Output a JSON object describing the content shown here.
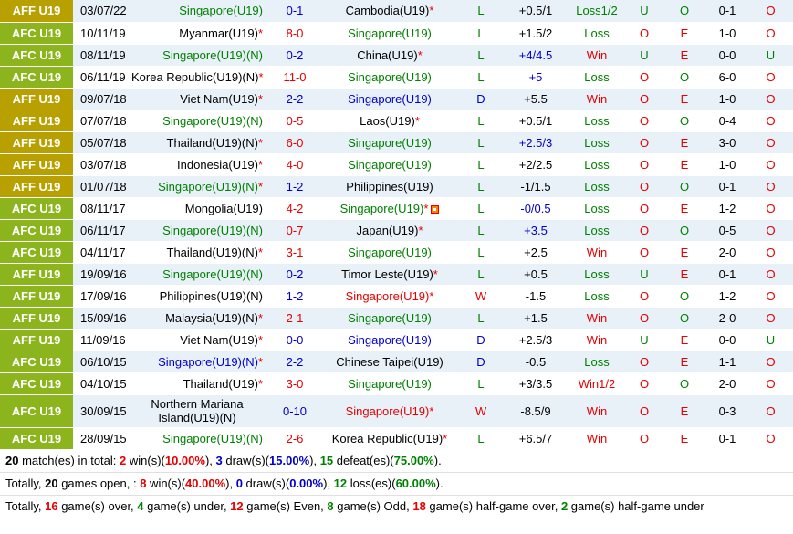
{
  "colors": {
    "aff": "#b8a000",
    "afc": "#8cb41c"
  },
  "rows": [
    {
      "league": "AFF U19",
      "lc": "aff",
      "date": "03/07/22",
      "home": "Singapore(U19)",
      "hc": "green",
      "hs": "",
      "score": "0-1",
      "sc": "blue",
      "away": "Cambodia(U19)",
      "ac": "black",
      "as": "*",
      "res": "L",
      "rc": "green",
      "hcap": "+0.5/1",
      "hcc": "black",
      "ou": "Loss1/2",
      "ouc": "green",
      "o1": "U",
      "o1c": "green",
      "o2": "O",
      "o2c": "green",
      "ht": "0-1",
      "o3": "O",
      "o3c": "red"
    },
    {
      "league": "AFC U19",
      "lc": "afc",
      "date": "10/11/19",
      "home": "Myanmar(U19)",
      "hc": "black",
      "hs": "*",
      "score": "8-0",
      "sc": "red",
      "away": "Singapore(U19)",
      "ac": "green",
      "as": "",
      "res": "L",
      "rc": "green",
      "hcap": "+1.5/2",
      "hcc": "black",
      "ou": "Loss",
      "ouc": "green",
      "o1": "O",
      "o1c": "red",
      "o2": "E",
      "o2c": "red",
      "ht": "1-0",
      "o3": "O",
      "o3c": "red"
    },
    {
      "league": "AFC U19",
      "lc": "afc",
      "date": "08/11/19",
      "home": "Singapore(U19)(N)",
      "hc": "green",
      "hs": "",
      "score": "0-2",
      "sc": "blue",
      "away": "China(U19)",
      "ac": "black",
      "as": "*",
      "res": "L",
      "rc": "green",
      "hcap": "+4/4.5",
      "hcc": "blue",
      "ou": "Win",
      "ouc": "red",
      "o1": "U",
      "o1c": "green",
      "o2": "E",
      "o2c": "red",
      "ht": "0-0",
      "o3": "U",
      "o3c": "green"
    },
    {
      "league": "AFC U19",
      "lc": "afc",
      "date": "06/11/19",
      "home": "Korea Republic(U19)(N)",
      "hc": "black",
      "hs": "*",
      "score": "11-0",
      "sc": "red",
      "away": "Singapore(U19)",
      "ac": "green",
      "as": "",
      "res": "L",
      "rc": "green",
      "hcap": "+5",
      "hcc": "blue",
      "ou": "Loss",
      "ouc": "green",
      "o1": "O",
      "o1c": "red",
      "o2": "O",
      "o2c": "green",
      "ht": "6-0",
      "o3": "O",
      "o3c": "red"
    },
    {
      "league": "AFF U19",
      "lc": "aff",
      "date": "09/07/18",
      "home": "Viet Nam(U19)",
      "hc": "black",
      "hs": "*",
      "score": "2-2",
      "sc": "blue",
      "away": "Singapore(U19)",
      "ac": "blue",
      "as": "",
      "res": "D",
      "rc": "blue",
      "hcap": "+5.5",
      "hcc": "black",
      "ou": "Win",
      "ouc": "red",
      "o1": "O",
      "o1c": "red",
      "o2": "E",
      "o2c": "red",
      "ht": "1-0",
      "o3": "O",
      "o3c": "red"
    },
    {
      "league": "AFF U19",
      "lc": "aff",
      "date": "07/07/18",
      "home": "Singapore(U19)(N)",
      "hc": "green",
      "hs": "",
      "score": "0-5",
      "sc": "red",
      "away": "Laos(U19)",
      "ac": "black",
      "as": "*",
      "res": "L",
      "rc": "green",
      "hcap": "+0.5/1",
      "hcc": "black",
      "ou": "Loss",
      "ouc": "green",
      "o1": "O",
      "o1c": "red",
      "o2": "O",
      "o2c": "green",
      "ht": "0-4",
      "o3": "O",
      "o3c": "red"
    },
    {
      "league": "AFF U19",
      "lc": "aff",
      "date": "05/07/18",
      "home": "Thailand(U19)(N)",
      "hc": "black",
      "hs": "*",
      "score": "6-0",
      "sc": "red",
      "away": "Singapore(U19)",
      "ac": "green",
      "as": "",
      "res": "L",
      "rc": "green",
      "hcap": "+2.5/3",
      "hcc": "blue",
      "ou": "Loss",
      "ouc": "green",
      "o1": "O",
      "o1c": "red",
      "o2": "E",
      "o2c": "red",
      "ht": "3-0",
      "o3": "O",
      "o3c": "red"
    },
    {
      "league": "AFF U19",
      "lc": "aff",
      "date": "03/07/18",
      "home": "Indonesia(U19)",
      "hc": "black",
      "hs": "*",
      "score": "4-0",
      "sc": "red",
      "away": "Singapore(U19)",
      "ac": "green",
      "as": "",
      "res": "L",
      "rc": "green",
      "hcap": "+2/2.5",
      "hcc": "black",
      "ou": "Loss",
      "ouc": "green",
      "o1": "O",
      "o1c": "red",
      "o2": "E",
      "o2c": "red",
      "ht": "1-0",
      "o3": "O",
      "o3c": "red"
    },
    {
      "league": "AFF U19",
      "lc": "aff",
      "date": "01/07/18",
      "home": "Singapore(U19)(N)",
      "hc": "green",
      "hs": "*",
      "score": "1-2",
      "sc": "blue",
      "away": "Philippines(U19)",
      "ac": "black",
      "as": "",
      "res": "L",
      "rc": "green",
      "hcap": "-1/1.5",
      "hcc": "black",
      "ou": "Loss",
      "ouc": "green",
      "o1": "O",
      "o1c": "red",
      "o2": "O",
      "o2c": "green",
      "ht": "0-1",
      "o3": "O",
      "o3c": "red"
    },
    {
      "league": "AFC U19",
      "lc": "afc",
      "date": "08/11/17",
      "home": "Mongolia(U19)",
      "hc": "black",
      "hs": "",
      "score": "4-2",
      "sc": "red",
      "away": "Singapore(U19)",
      "ac": "green",
      "as": "*",
      "flag": true,
      "res": "L",
      "rc": "green",
      "hcap": "-0/0.5",
      "hcc": "blue",
      "ou": "Loss",
      "ouc": "green",
      "o1": "O",
      "o1c": "red",
      "o2": "E",
      "o2c": "red",
      "ht": "1-2",
      "o3": "O",
      "o3c": "red"
    },
    {
      "league": "AFC U19",
      "lc": "afc",
      "date": "06/11/17",
      "home": "Singapore(U19)(N)",
      "hc": "green",
      "hs": "",
      "score": "0-7",
      "sc": "red",
      "away": "Japan(U19)",
      "ac": "black",
      "as": "*",
      "res": "L",
      "rc": "green",
      "hcap": "+3.5",
      "hcc": "blue",
      "ou": "Loss",
      "ouc": "green",
      "o1": "O",
      "o1c": "red",
      "o2": "O",
      "o2c": "green",
      "ht": "0-5",
      "o3": "O",
      "o3c": "red"
    },
    {
      "league": "AFC U19",
      "lc": "afc",
      "date": "04/11/17",
      "home": "Thailand(U19)(N)",
      "hc": "black",
      "hs": "*",
      "score": "3-1",
      "sc": "red",
      "away": "Singapore(U19)",
      "ac": "green",
      "as": "",
      "res": "L",
      "rc": "green",
      "hcap": "+2.5",
      "hcc": "black",
      "ou": "Win",
      "ouc": "red",
      "o1": "O",
      "o1c": "red",
      "o2": "E",
      "o2c": "red",
      "ht": "2-0",
      "o3": "O",
      "o3c": "red"
    },
    {
      "league": "AFF U19",
      "lc": "afc",
      "date": "19/09/16",
      "home": "Singapore(U19)(N)",
      "hc": "green",
      "hs": "",
      "score": "0-2",
      "sc": "blue",
      "away": "Timor Leste(U19)",
      "ac": "black",
      "as": "*",
      "res": "L",
      "rc": "green",
      "hcap": "+0.5",
      "hcc": "black",
      "ou": "Loss",
      "ouc": "green",
      "o1": "U",
      "o1c": "green",
      "o2": "E",
      "o2c": "red",
      "ht": "0-1",
      "o3": "O",
      "o3c": "red"
    },
    {
      "league": "AFF U19",
      "lc": "afc",
      "date": "17/09/16",
      "home": "Philippines(U19)(N)",
      "hc": "black",
      "hs": "",
      "score": "1-2",
      "sc": "blue",
      "away": "Singapore(U19)",
      "ac": "red",
      "as": "*",
      "res": "W",
      "rc": "red",
      "hcap": "-1.5",
      "hcc": "black",
      "ou": "Loss",
      "ouc": "green",
      "o1": "O",
      "o1c": "red",
      "o2": "O",
      "o2c": "green",
      "ht": "1-2",
      "o3": "O",
      "o3c": "red"
    },
    {
      "league": "AFF U19",
      "lc": "afc",
      "date": "15/09/16",
      "home": "Malaysia(U19)(N)",
      "hc": "black",
      "hs": "*",
      "score": "2-1",
      "sc": "red",
      "away": "Singapore(U19)",
      "ac": "green",
      "as": "",
      "res": "L",
      "rc": "green",
      "hcap": "+1.5",
      "hcc": "black",
      "ou": "Win",
      "ouc": "red",
      "o1": "O",
      "o1c": "red",
      "o2": "O",
      "o2c": "green",
      "ht": "2-0",
      "o3": "O",
      "o3c": "red"
    },
    {
      "league": "AFF U19",
      "lc": "afc",
      "date": "11/09/16",
      "home": "Viet Nam(U19)",
      "hc": "black",
      "hs": "*",
      "score": "0-0",
      "sc": "blue",
      "away": "Singapore(U19)",
      "ac": "blue",
      "as": "",
      "res": "D",
      "rc": "blue",
      "hcap": "+2.5/3",
      "hcc": "black",
      "ou": "Win",
      "ouc": "red",
      "o1": "U",
      "o1c": "green",
      "o2": "E",
      "o2c": "red",
      "ht": "0-0",
      "o3": "U",
      "o3c": "green"
    },
    {
      "league": "AFC U19",
      "lc": "afc",
      "date": "06/10/15",
      "home": "Singapore(U19)(N)",
      "hc": "blue",
      "hs": "*",
      "score": "2-2",
      "sc": "blue",
      "away": "Chinese Taipei(U19)",
      "ac": "black",
      "as": "",
      "res": "D",
      "rc": "blue",
      "hcap": "-0.5",
      "hcc": "black",
      "ou": "Loss",
      "ouc": "green",
      "o1": "O",
      "o1c": "red",
      "o2": "E",
      "o2c": "red",
      "ht": "1-1",
      "o3": "O",
      "o3c": "red"
    },
    {
      "league": "AFC U19",
      "lc": "afc",
      "date": "04/10/15",
      "home": "Thailand(U19)",
      "hc": "black",
      "hs": "*",
      "score": "3-0",
      "sc": "red",
      "away": "Singapore(U19)",
      "ac": "green",
      "as": "",
      "res": "L",
      "rc": "green",
      "hcap": "+3/3.5",
      "hcc": "black",
      "ou": "Win1/2",
      "ouc": "red",
      "o1": "O",
      "o1c": "red",
      "o2": "O",
      "o2c": "green",
      "ht": "2-0",
      "o3": "O",
      "o3c": "red"
    },
    {
      "league": "AFC U19",
      "lc": "afc",
      "date": "30/09/15",
      "home": "Northern Mariana Island(U19)(N)",
      "hc": "black",
      "hs": "",
      "tall": true,
      "score": "0-10",
      "sc": "blue",
      "away": "Singapore(U19)",
      "ac": "red",
      "as": "*",
      "res": "W",
      "rc": "red",
      "hcap": "-8.5/9",
      "hcc": "black",
      "ou": "Win",
      "ouc": "red",
      "o1": "O",
      "o1c": "red",
      "o2": "E",
      "o2c": "red",
      "ht": "0-3",
      "o3": "O",
      "o3c": "red"
    },
    {
      "league": "AFC U19",
      "lc": "afc",
      "date": "28/09/15",
      "home": "Singapore(U19)(N)",
      "hc": "green",
      "hs": "",
      "score": "2-6",
      "sc": "red",
      "away": "Korea Republic(U19)",
      "ac": "black",
      "as": "*",
      "res": "L",
      "rc": "green",
      "hcap": "+6.5/7",
      "hcc": "black",
      "ou": "Win",
      "ouc": "red",
      "o1": "O",
      "o1c": "red",
      "o2": "E",
      "o2c": "red",
      "ht": "0-1",
      "o3": "O",
      "o3c": "red"
    }
  ],
  "summary": {
    "line1": {
      "count": "20",
      "t1": " match(es) in total: ",
      "wins": "2",
      "t2": " win(s)(",
      "winpct": "10.00%",
      "t3": "), ",
      "draws": "3",
      "t4": " draw(s)(",
      "drawpct": "15.00%",
      "t5": "), ",
      "defeats": "15",
      "t6": " defeat(es)(",
      "defeatpct": "75.00%",
      "t7": ")."
    },
    "line2": {
      "t0": "Totally, ",
      "count": "20",
      "t1": " games open, : ",
      "wins": "8",
      "t2": " win(s)(",
      "winpct": "40.00%",
      "t3": "), ",
      "draws": "0",
      "t4": " draw(s)(",
      "drawpct": "0.00%",
      "t5": "), ",
      "losses": "12",
      "t6": " loss(es)(",
      "losspct": "60.00%",
      "t7": ")."
    },
    "line3": {
      "t0": "Totally, ",
      "over": "16",
      "t1": " game(s) over, ",
      "under": "4",
      "t2": " game(s) under, ",
      "even": "12",
      "t3": " game(s) Even, ",
      "odd": "8",
      "t4": " game(s) Odd, ",
      "hgover": "18",
      "t5": " game(s) half-game over, ",
      "hgunder": "2",
      "t6": " game(s) half-game under"
    }
  }
}
